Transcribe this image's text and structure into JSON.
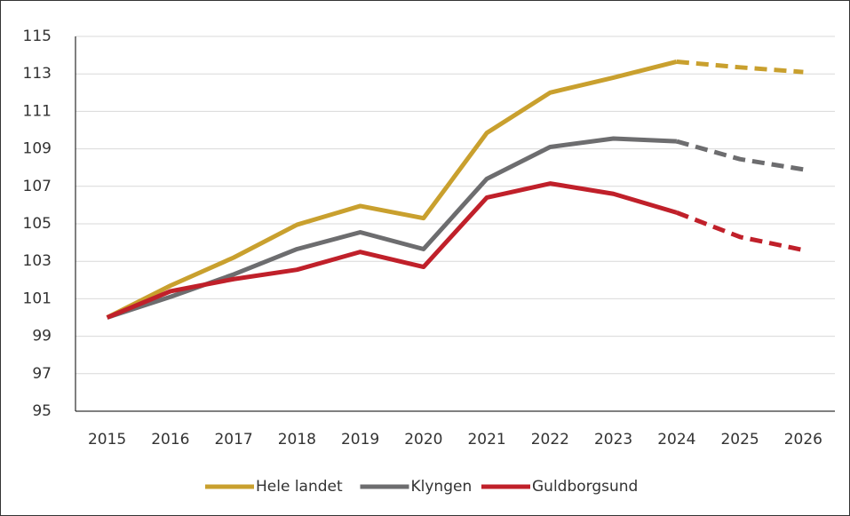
{
  "chart_data": {
    "type": "line",
    "categories": [
      "2015",
      "2016",
      "2017",
      "2018",
      "2019",
      "2020",
      "2021",
      "2022",
      "2023",
      "2024",
      "2025",
      "2026"
    ],
    "series": [
      {
        "name": "Hele landet",
        "color": "#c9a02e",
        "values": [
          100,
          101.7,
          103.2,
          104.95,
          105.95,
          105.3,
          109.85,
          112.0,
          112.8,
          113.65,
          113.35,
          113.1
        ]
      },
      {
        "name": "Klyngen",
        "color": "#6d6d6f",
        "values": [
          100,
          101.1,
          102.3,
          103.65,
          104.55,
          103.65,
          107.4,
          109.1,
          109.55,
          109.4,
          108.45,
          107.9
        ]
      },
      {
        "name": "Guldborgsund",
        "color": "#c0202a",
        "values": [
          100,
          101.4,
          102.05,
          102.55,
          103.5,
          102.7,
          106.4,
          107.15,
          106.6,
          105.6,
          104.3,
          103.6
        ]
      }
    ],
    "dashed_from": "2024",
    "ylim": [
      95,
      115
    ],
    "yticks": [
      95,
      97,
      99,
      101,
      103,
      105,
      107,
      109,
      111,
      113,
      115
    ],
    "grid": true,
    "legend": "bottom"
  }
}
